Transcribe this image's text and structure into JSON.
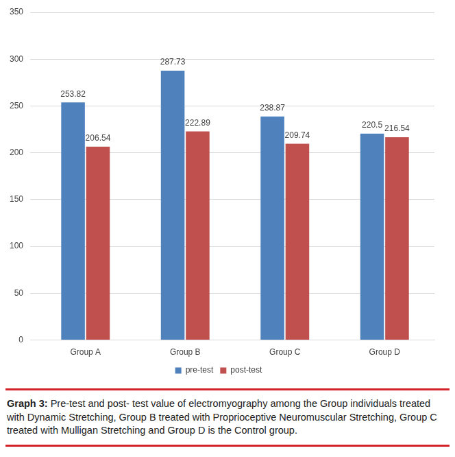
{
  "chart_data": {
    "type": "bar",
    "categories": [
      "Group A",
      "Group B",
      "Group C",
      "Group D"
    ],
    "series": [
      {
        "name": "pre-test",
        "color": "#4f81bd",
        "values": [
          253.82,
          287.73,
          238.87,
          220.5
        ]
      },
      {
        "name": "post-test",
        "color": "#c0504d",
        "values": [
          206.54,
          222.89,
          209.74,
          216.54
        ]
      }
    ],
    "ylim": [
      0,
      350
    ],
    "yticks": [
      0,
      50,
      100,
      150,
      200,
      250,
      300,
      350
    ],
    "grid": true,
    "legend": "bottom",
    "data_labels": true
  },
  "caption": {
    "label": "Graph 3:",
    "text": "Pre-test and post- test value of electromyography among the Group individuals treated with Dynamic Stretching, Group B treated with Proprioceptive Neuromuscular Stretching, Group C treated with Mulligan Stretching and Group D is the Control group."
  }
}
